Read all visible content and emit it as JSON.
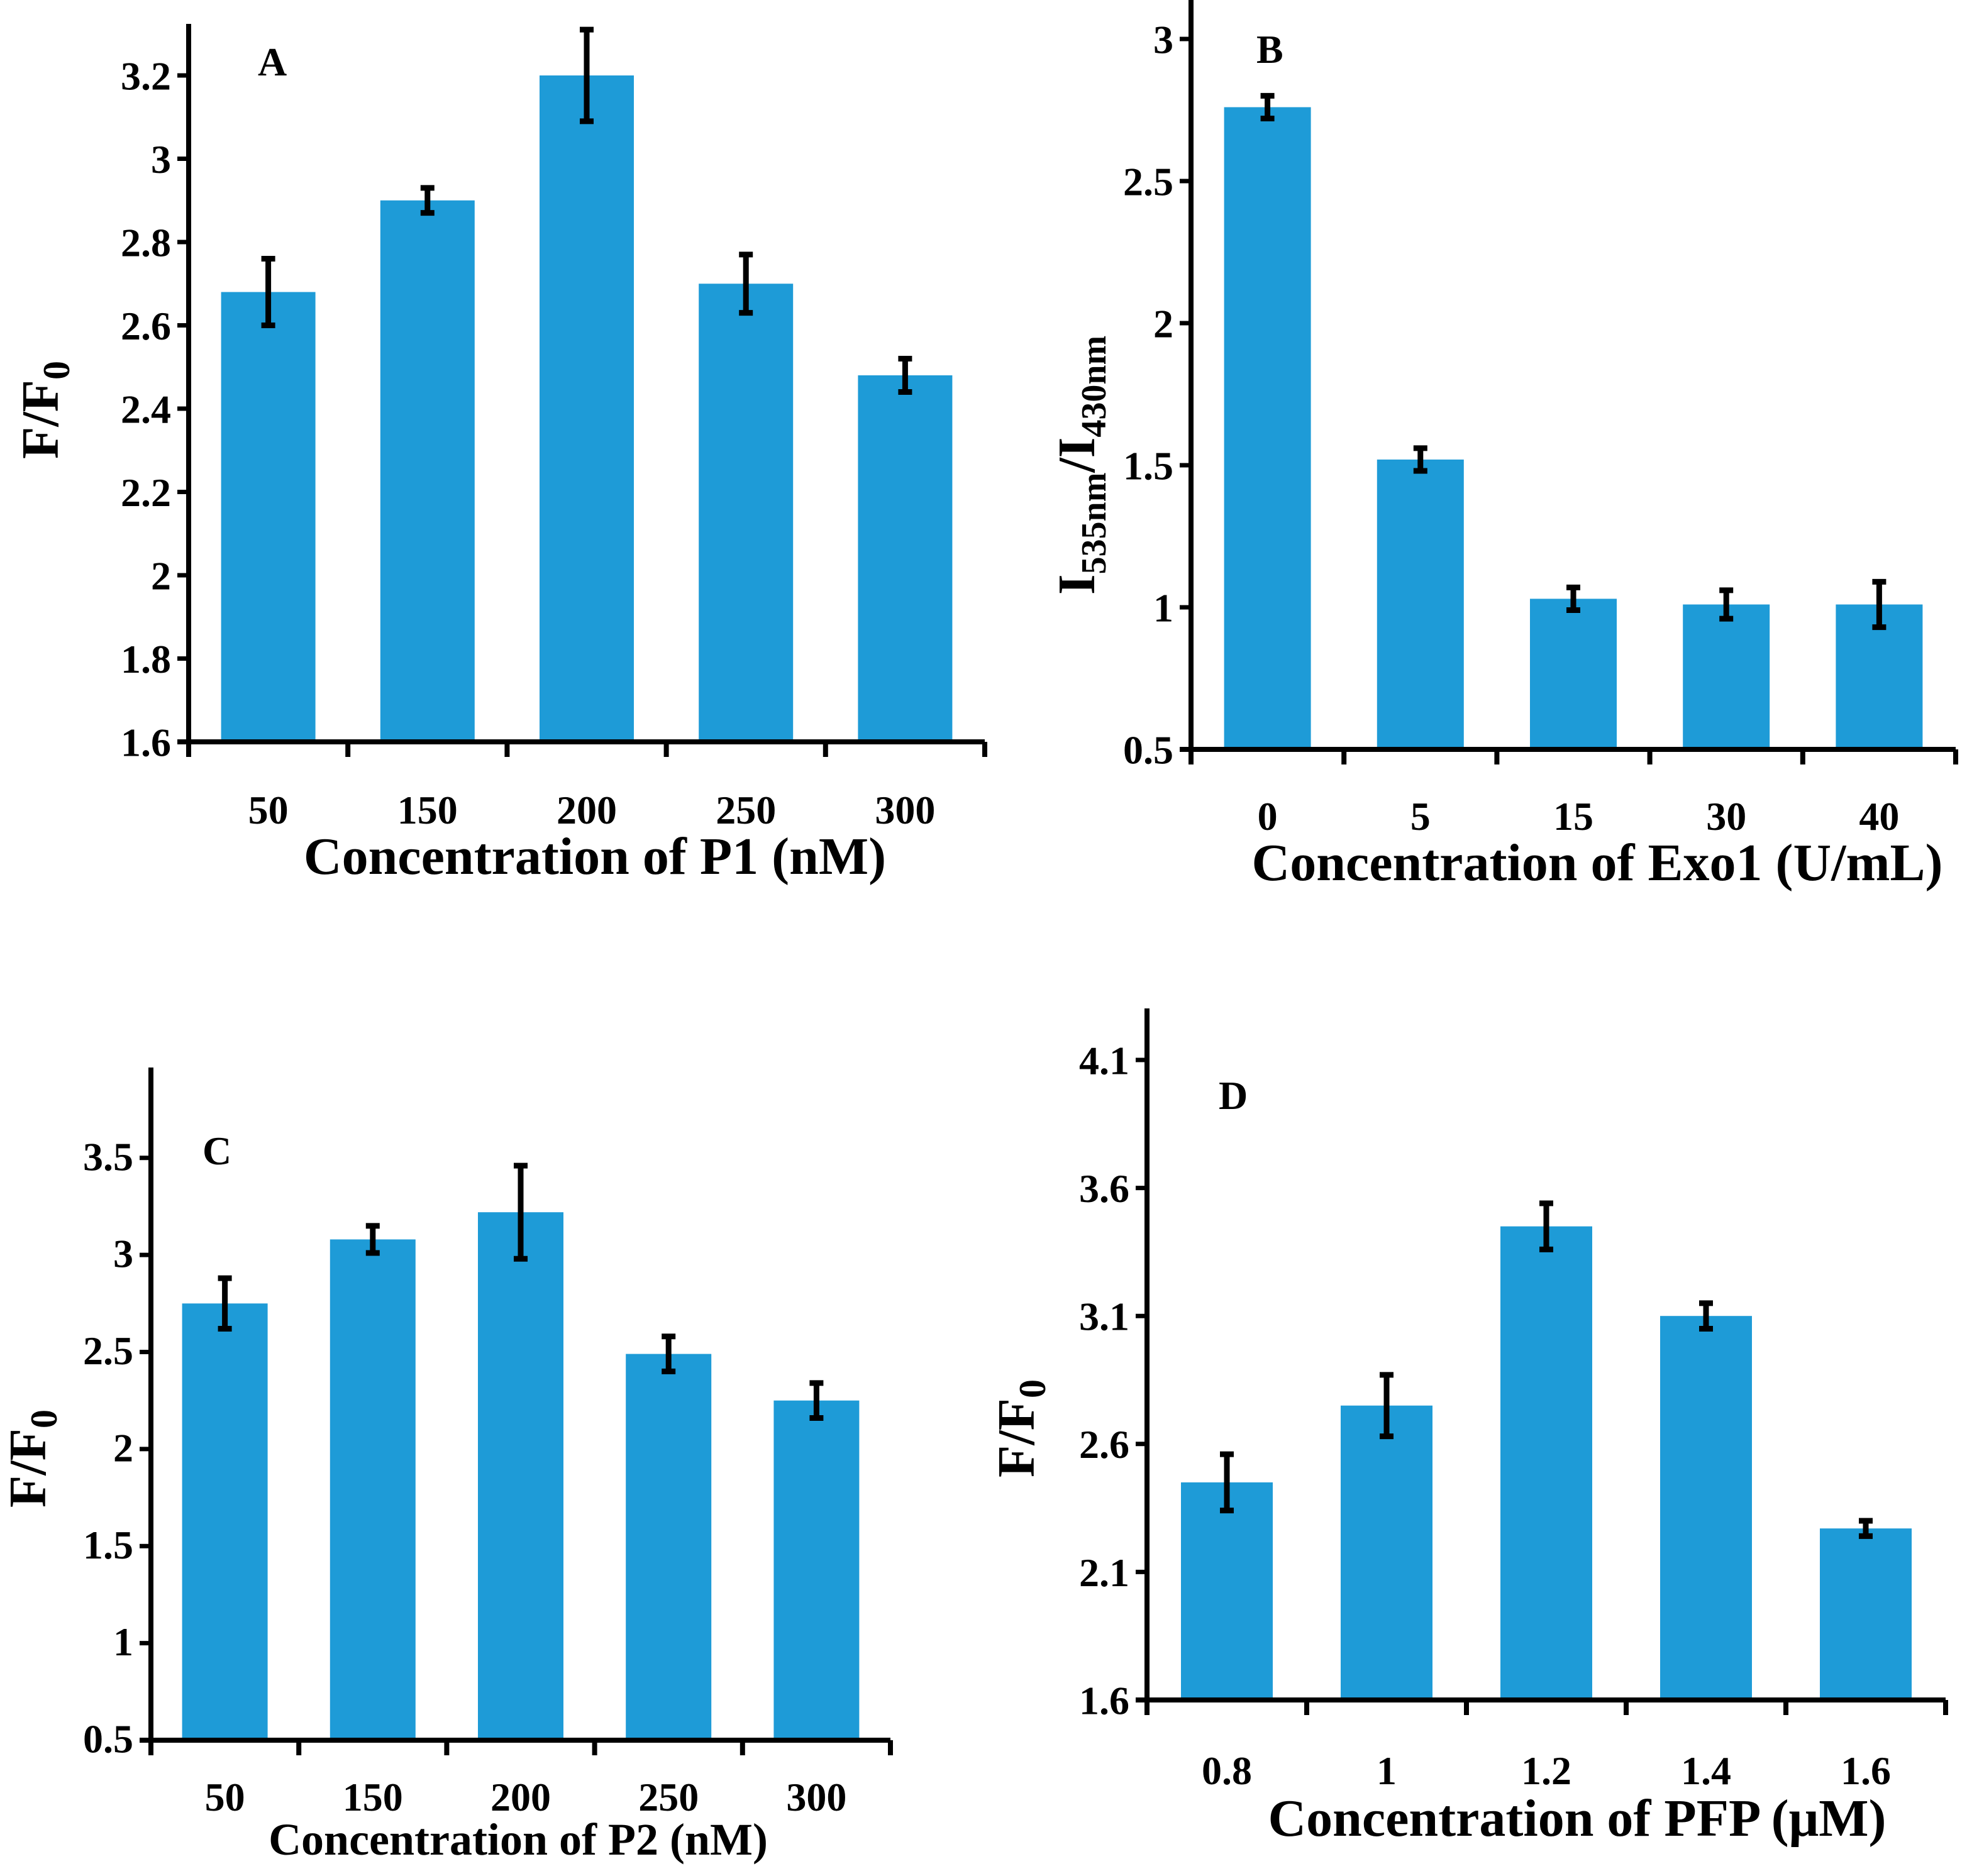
{
  "chart_data": [
    {
      "type": "bar",
      "panel_label": "A",
      "categories": [
        "50",
        "150",
        "200",
        "250",
        "300"
      ],
      "values": [
        2.68,
        2.9,
        3.2,
        2.7,
        2.48
      ],
      "errors": [
        0.08,
        0.03,
        0.11,
        0.07,
        0.04
      ],
      "xlabel": "Concentration of P1 (nM)",
      "ylabel": {
        "main": "F/F",
        "sub": "0"
      },
      "ylim": [
        1.6,
        3.2
      ],
      "yticks": [
        1.6,
        1.8,
        2,
        2.2,
        2.4,
        2.6,
        2.8,
        3,
        3.2
      ],
      "ytick_labels": [
        "1.6",
        "1.8",
        "2",
        "2.2",
        "2.4",
        "2.6",
        "2.8",
        "3",
        "3.2"
      ],
      "bar_color": "#1e9bd7",
      "grid": false
    },
    {
      "type": "bar",
      "panel_label": "B",
      "categories": [
        "0",
        "5",
        "15",
        "30",
        "40"
      ],
      "values": [
        2.76,
        1.52,
        1.03,
        1.01,
        1.01
      ],
      "errors": [
        0.04,
        0.04,
        0.04,
        0.05,
        0.08
      ],
      "xlabel": "Concentration of Exo1 (U/mL)",
      "ylabel": {
        "parts": [
          {
            "t": "I",
            "sub": "535nm"
          },
          {
            "t": "/I",
            "sub": "430nm"
          }
        ]
      },
      "ylim": [
        0.5,
        3
      ],
      "yticks": [
        0.5,
        1,
        1.5,
        2,
        2.5,
        3
      ],
      "ytick_labels": [
        "0.5",
        "1",
        "1.5",
        "2",
        "2.5",
        "3"
      ],
      "bar_color": "#1e9bd7",
      "grid": false
    },
    {
      "type": "bar",
      "panel_label": "C",
      "categories": [
        "50",
        "150",
        "200",
        "250",
        "300"
      ],
      "values": [
        2.75,
        3.08,
        3.22,
        2.49,
        2.25
      ],
      "errors": [
        0.13,
        0.07,
        0.24,
        0.09,
        0.09
      ],
      "xlabel": "Concentration of P2 (nM)",
      "ylabel": {
        "main": "F/F",
        "sub": "0"
      },
      "ylim": [
        0.5,
        3.7
      ],
      "yticks": [
        0.5,
        1,
        1.5,
        2,
        2.5,
        3,
        3.5
      ],
      "ytick_labels": [
        "0.5",
        "1",
        "1.5",
        "2",
        "2.5",
        "3",
        "3.5"
      ],
      "bar_color": "#1e9bd7",
      "grid": false
    },
    {
      "type": "bar",
      "panel_label": "D",
      "categories": [
        "0.8",
        "1",
        "1.2",
        "1.4",
        "1.6"
      ],
      "values": [
        2.45,
        2.75,
        3.45,
        3.1,
        2.27
      ],
      "errors": [
        0.11,
        0.12,
        0.09,
        0.05,
        0.03
      ],
      "xlabel": "Concentration of PFP (μM)",
      "ylabel": {
        "main": "F/F",
        "sub": "0"
      },
      "ylim": [
        1.6,
        4.1
      ],
      "yticks": [
        1.6,
        2.1,
        2.6,
        3.1,
        3.6,
        4.1
      ],
      "ytick_labels": [
        "1.6",
        "2.1",
        "2.6",
        "3.1",
        "3.6",
        "4.1"
      ],
      "bar_color": "#1e9bd7",
      "grid": false
    }
  ]
}
